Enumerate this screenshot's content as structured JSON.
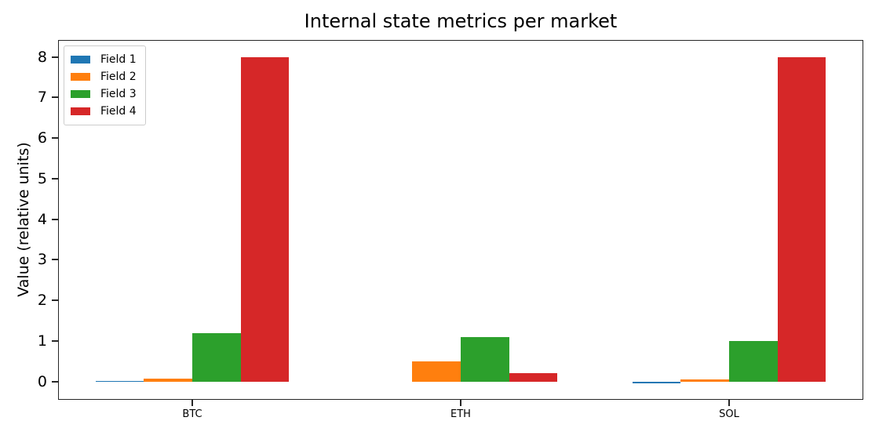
{
  "chart_data": {
    "type": "bar",
    "title": "Internal state metrics per market",
    "xlabel": "",
    "ylabel": "Value (relative units)",
    "categories": [
      "BTC",
      "ETH",
      "SOL"
    ],
    "series": [
      {
        "name": "Field 1",
        "color": "#1f77b4",
        "values": [
          0.02,
          0.0,
          -0.05
        ]
      },
      {
        "name": "Field 2",
        "color": "#ff7f0e",
        "values": [
          0.08,
          0.5,
          0.05
        ]
      },
      {
        "name": "Field 3",
        "color": "#2ca02c",
        "values": [
          1.2,
          1.1,
          1.0
        ]
      },
      {
        "name": "Field 4",
        "color": "#d62728",
        "values": [
          8.0,
          0.2,
          8.0
        ]
      }
    ],
    "ylim": [
      -0.45,
      8.42
    ],
    "yticks": [
      0,
      1,
      2,
      3,
      4,
      5,
      6,
      7,
      8
    ],
    "bar_width_units": 0.18,
    "legend_position": "upper-left",
    "grid": false,
    "spine_color": "#262626",
    "text_color": "#000000",
    "background_color": "#ffffff"
  }
}
